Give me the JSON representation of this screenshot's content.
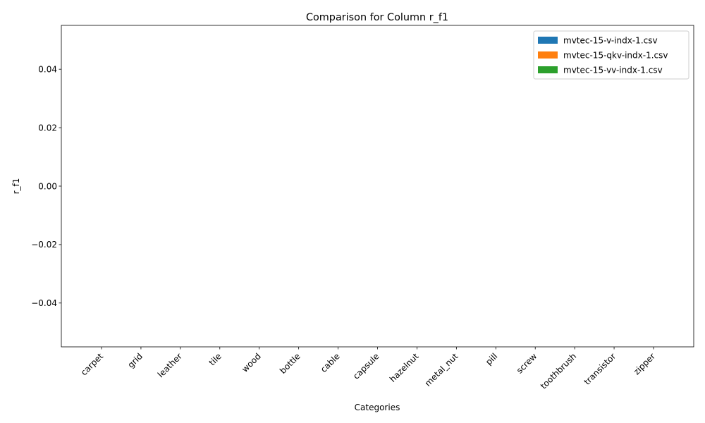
{
  "chart_data": {
    "type": "bar",
    "title": "Comparison for Column r_f1",
    "xlabel": "Categories",
    "ylabel": "r_f1",
    "categories": [
      "carpet",
      "grid",
      "leather",
      "tile",
      "wood",
      "bottle",
      "cable",
      "capsule",
      "hazelnut",
      "metal_nut",
      "pill",
      "screw",
      "toothbrush",
      "transistor",
      "zipper"
    ],
    "series": [
      {
        "name": "mvtec-15-v-indx-1.csv",
        "color": "#1f77b4",
        "values": [
          0,
          0,
          0,
          0,
          0,
          0,
          0,
          0,
          0,
          0,
          0,
          0,
          0,
          0,
          0
        ]
      },
      {
        "name": "mvtec-15-qkv-indx-1.csv",
        "color": "#ff7f0e",
        "values": [
          0,
          0,
          0,
          0,
          0,
          0,
          0,
          0,
          0,
          0,
          0,
          0,
          0,
          0,
          0
        ]
      },
      {
        "name": "mvtec-15-vv-indx-1.csv",
        "color": "#2ca02c",
        "values": [
          0,
          0,
          0,
          0,
          0,
          0,
          0,
          0,
          0,
          0,
          0,
          0,
          0,
          0,
          0
        ]
      }
    ],
    "ylim": [
      -0.055,
      0.055
    ],
    "yticks": [
      -0.04,
      -0.02,
      0.0,
      0.02,
      0.04
    ],
    "ytick_labels": [
      "−0.04",
      "−0.02",
      "0.00",
      "0.02",
      "0.04"
    ],
    "grid": false,
    "legend_position": "top-right"
  }
}
